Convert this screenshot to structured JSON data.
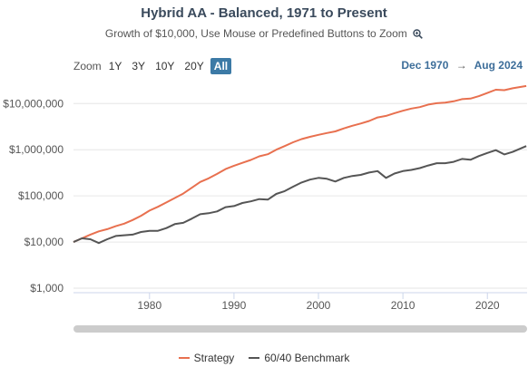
{
  "header": {
    "title": "Hybrid AA - Balanced, 1971 to Present",
    "subtitle": "Growth of $10,000, Use Mouse or Predefined Buttons to Zoom"
  },
  "zoom": {
    "label": "Zoom",
    "buttons": [
      "1Y",
      "3Y",
      "10Y",
      "20Y",
      "All"
    ],
    "active": "All"
  },
  "range": {
    "from": "Dec 1970",
    "arrow": "→",
    "to": "Aug 2024"
  },
  "colors": {
    "strategy": "#e8704f",
    "benchmark": "#555555",
    "active_button": "#3c7aa6"
  },
  "chart_data": {
    "type": "line",
    "title": "Hybrid AA - Balanced, 1971 to Present",
    "ylabel": "",
    "xlabel": "",
    "y_scale": "log",
    "ylim": [
      1000,
      30000000
    ],
    "xlim": [
      1971,
      2024.7
    ],
    "y_ticks": [
      1000,
      10000,
      100000,
      1000000,
      10000000
    ],
    "y_tick_labels": [
      "$1,000",
      "$10,000",
      "$100,000",
      "$1,000,000",
      "$10,000,000"
    ],
    "x_ticks": [
      1980,
      1990,
      2000,
      2010,
      2020
    ],
    "x_tick_labels": [
      "1980",
      "1990",
      "2000",
      "2010",
      "2020"
    ],
    "grid": true,
    "legend": "bottom",
    "series": [
      {
        "name": "Strategy",
        "color": "#e8704f",
        "x": [
          1971,
          1972,
          1973,
          1974,
          1975,
          1976,
          1977,
          1978,
          1979,
          1980,
          1981,
          1982,
          1983,
          1984,
          1985,
          1986,
          1987,
          1988,
          1989,
          1990,
          1991,
          1992,
          1993,
          1994,
          1995,
          1996,
          1997,
          1998,
          1999,
          2000,
          2001,
          2002,
          2003,
          2004,
          2005,
          2006,
          2007,
          2008,
          2009,
          2010,
          2011,
          2012,
          2013,
          2014,
          2015,
          2016,
          2017,
          2018,
          2019,
          2020,
          2021,
          2022,
          2023,
          2024.6
        ],
        "y": [
          10000,
          12000,
          14500,
          17000,
          19000,
          22000,
          25000,
          30000,
          37000,
          48000,
          58000,
          72000,
          90000,
          112000,
          150000,
          200000,
          240000,
          300000,
          380000,
          450000,
          520000,
          600000,
          720000,
          800000,
          1000000,
          1200000,
          1450000,
          1700000,
          1900000,
          2100000,
          2300000,
          2500000,
          2900000,
          3300000,
          3700000,
          4200000,
          5000000,
          5400000,
          6200000,
          7000000,
          7800000,
          8400000,
          9500000,
          10200000,
          10500000,
          11200000,
          12500000,
          12800000,
          14500000,
          17000000,
          20000000,
          19500000,
          21500000,
          24000000
        ]
      },
      {
        "name": "60/40 Benchmark",
        "color": "#555555",
        "x": [
          1971,
          1972,
          1973,
          1974,
          1975,
          1976,
          1977,
          1978,
          1979,
          1980,
          1981,
          1982,
          1983,
          1984,
          1985,
          1986,
          1987,
          1988,
          1989,
          1990,
          1991,
          1992,
          1993,
          1994,
          1995,
          1996,
          1997,
          1998,
          1999,
          2000,
          2001,
          2002,
          2003,
          2004,
          2005,
          2006,
          2007,
          2008,
          2009,
          2010,
          2011,
          2012,
          2013,
          2014,
          2015,
          2016,
          2017,
          2018,
          2019,
          2020,
          2021,
          2022,
          2023,
          2024.6
        ],
        "y": [
          10000,
          12000,
          11500,
          9500,
          11500,
          13500,
          14000,
          14500,
          16500,
          17500,
          17500,
          20000,
          24500,
          26000,
          32000,
          40000,
          42000,
          46000,
          57000,
          60000,
          70000,
          76000,
          85000,
          83000,
          110000,
          127000,
          158000,
          195000,
          225000,
          245000,
          235000,
          205000,
          245000,
          270000,
          285000,
          320000,
          345000,
          245000,
          305000,
          345000,
          365000,
          400000,
          455000,
          510000,
          510000,
          545000,
          630000,
          605000,
          730000,
          850000,
          980000,
          790000,
          900000,
          1200000
        ]
      }
    ]
  }
}
